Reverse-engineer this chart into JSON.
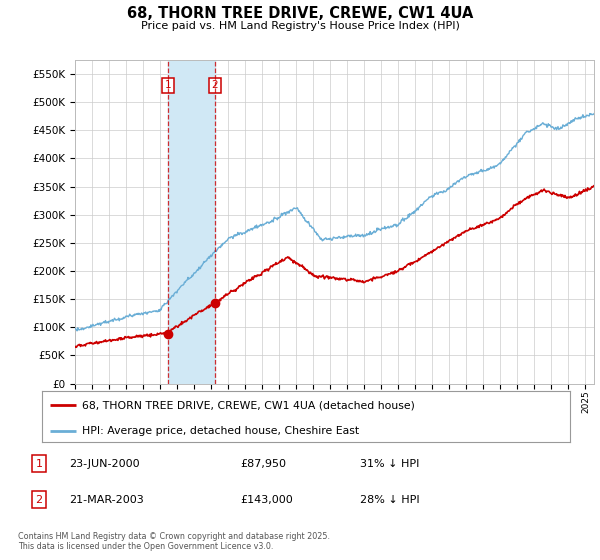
{
  "title": "68, THORN TREE DRIVE, CREWE, CW1 4UA",
  "subtitle": "Price paid vs. HM Land Registry's House Price Index (HPI)",
  "background_color": "#ffffff",
  "grid_color": "#cccccc",
  "hpi_color": "#6aaed6",
  "price_color": "#cc0000",
  "vspan_color": "#d0e8f5",
  "ylim": [
    0,
    575000
  ],
  "yticks": [
    0,
    50000,
    100000,
    150000,
    200000,
    250000,
    300000,
    350000,
    400000,
    450000,
    500000,
    550000
  ],
  "legend_label_red": "68, THORN TREE DRIVE, CREWE, CW1 4UA (detached house)",
  "legend_label_blue": "HPI: Average price, detached house, Cheshire East",
  "transaction1_date": "23-JUN-2000",
  "transaction1_price": "£87,950",
  "transaction1_hpi": "31% ↓ HPI",
  "transaction2_date": "21-MAR-2003",
  "transaction2_price": "£143,000",
  "transaction2_hpi": "28% ↓ HPI",
  "footnote": "Contains HM Land Registry data © Crown copyright and database right 2025.\nThis data is licensed under the Open Government Licence v3.0.",
  "vline1_x": 2000.47,
  "vline2_x": 2003.22,
  "marker1_red_x": 2000.47,
  "marker1_red_y": 87950,
  "marker2_red_x": 2003.22,
  "marker2_red_y": 143000,
  "xlim_left": 1995.0,
  "xlim_right": 2025.5
}
